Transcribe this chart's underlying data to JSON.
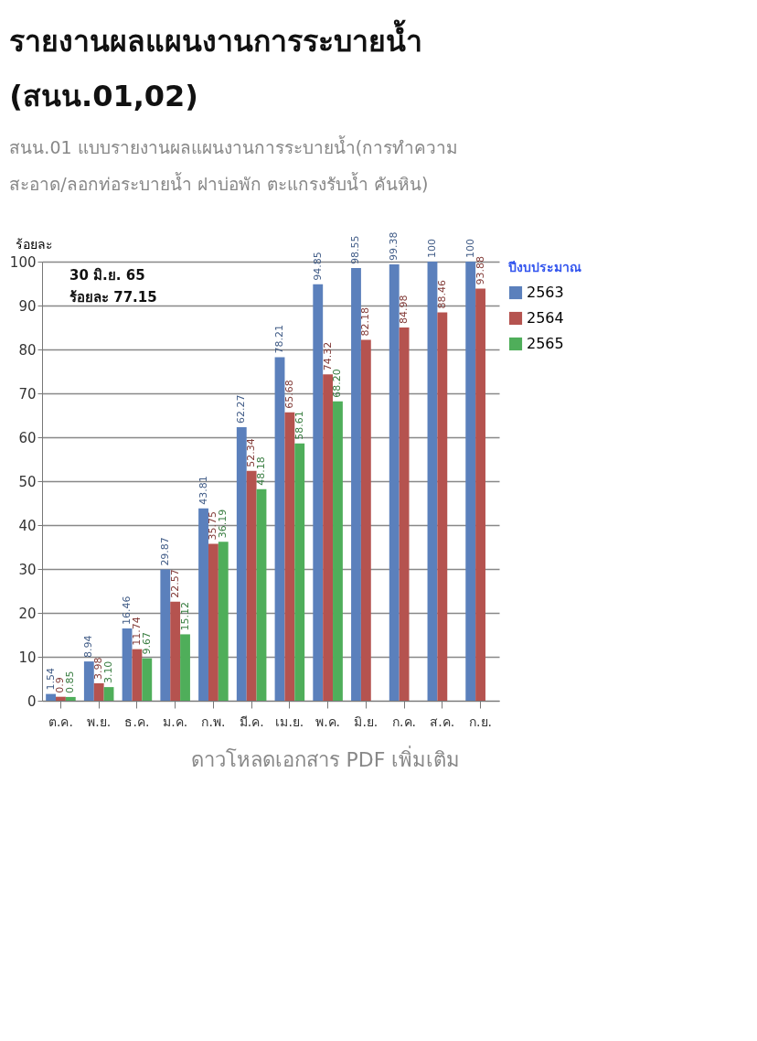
{
  "chart_data": {
    "type": "bar",
    "title": [
      "รายงานผลแผนงานการระบายน้ำ",
      "(สนน.01,02)"
    ],
    "subtitle": [
      "สนน.01 แบบรายงานผลแผนงานการระบายน้ำ(การทำความ",
      "สะอาด/ลอกท่อระบายน้ำ ฝาบ่อพัก ตะแกรงรับน้ำ คันหิน)"
    ],
    "ylabel": "ร้อยละ",
    "legend_title": "ปีงบประมาณ",
    "legend": "right",
    "categories": [
      "ต.ค.",
      "พ.ย.",
      "ธ.ค.",
      "ม.ค.",
      "ก.พ.",
      "มี.ค.",
      "เม.ย.",
      "พ.ค.",
      "มิ.ย.",
      "ก.ค.",
      "ส.ค.",
      "ก.ย."
    ],
    "series": [
      {
        "name": "2563",
        "color": "#5b80bc",
        "values": [
          1.54,
          8.94,
          16.46,
          29.87,
          43.81,
          62.27,
          78.21,
          94.85,
          98.55,
          99.38,
          100,
          100
        ],
        "value_labels": [
          "1.54",
          "8.94",
          "16.46",
          "29.87",
          "43.81",
          "62.27",
          "78.21",
          "94.85",
          "98.55",
          "99.38",
          "100",
          "100"
        ]
      },
      {
        "name": "2564",
        "color": "#b5534f",
        "values": [
          0.9,
          3.98,
          11.74,
          22.57,
          35.75,
          52.34,
          65.68,
          74.32,
          82.18,
          84.98,
          88.46,
          93.88
        ],
        "value_labels": [
          "0.9",
          "3.98",
          "11.74",
          "22.57",
          "35.75",
          "52.34",
          "65.68",
          "74.32",
          "82.18",
          "84.98",
          "88.46",
          "93.88"
        ]
      },
      {
        "name": "2565",
        "color": "#4fae5a",
        "values": [
          0.85,
          3.1,
          9.67,
          15.12,
          36.19,
          48.18,
          58.61,
          68.2,
          null,
          null,
          null,
          null
        ],
        "value_labels": [
          "0.85",
          "3.10",
          "9.67",
          "15.12",
          "36.19",
          "48.18",
          "58.61",
          "68.20",
          null,
          null,
          null,
          null
        ]
      }
    ],
    "ylim": [
      0,
      100
    ],
    "yticks": [
      0,
      10,
      20,
      30,
      40,
      50,
      60,
      70,
      80,
      90,
      100
    ],
    "grid": "y",
    "annotations": [
      "30 มิ.ย. 65",
      "ร้อยละ 77.15",
      "ดาวโหลดเอกสาร PDF เพิ่มเติม"
    ]
  }
}
